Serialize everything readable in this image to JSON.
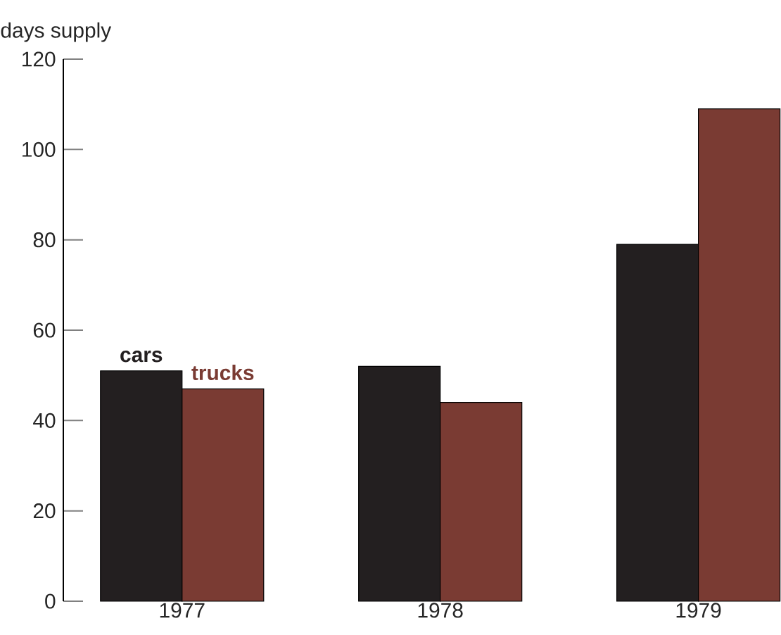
{
  "chart_data": {
    "type": "bar",
    "ylabel": "days supply",
    "categories": [
      "1977",
      "1978",
      "1979"
    ],
    "series": [
      {
        "name": "cars",
        "color": "#231f20",
        "values": [
          51,
          52,
          79
        ]
      },
      {
        "name": "trucks",
        "color": "#7a3b33",
        "values": [
          47,
          44,
          109
        ]
      }
    ],
    "ylim": [
      0,
      120
    ],
    "yticks": [
      0,
      20,
      40,
      60,
      80,
      100,
      120
    ]
  }
}
